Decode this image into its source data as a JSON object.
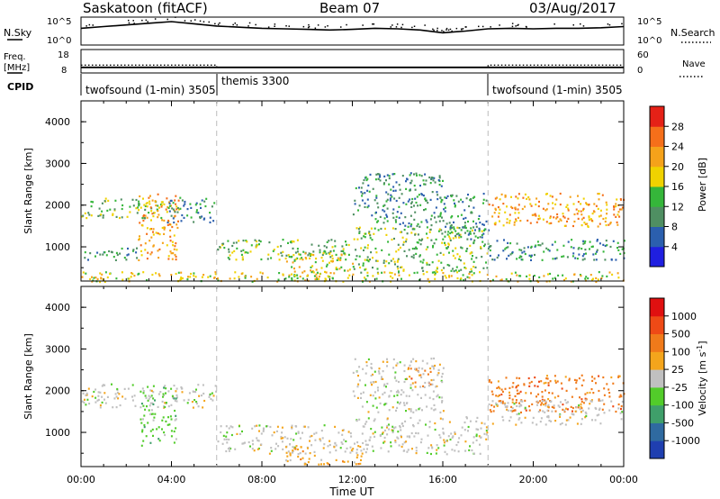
{
  "header": {
    "station": "Saskatoon (fitACF)",
    "beam": "Beam 07",
    "date": "03/Aug/2017"
  },
  "colors": {
    "power_scale": [
      "#1f1fe0",
      "#2b5fae",
      "#4f8f62",
      "#35b63a",
      "#f0d200",
      "#f5a21a",
      "#f56f1a",
      "#e52117"
    ],
    "velocity_scale": [
      "#1f3fb0",
      "#2f6aa0",
      "#3f9f6a",
      "#52cc2a",
      "#c0c0c0",
      "#f4a51c",
      "#f07a1a",
      "#ee4a16",
      "#e01010"
    ]
  },
  "chart_data": [
    {
      "type": "line",
      "name": "nsky-nsearch-panel",
      "left_label": "N.Sky",
      "right_label": "N.Search",
      "left_ticks": [
        "10^5",
        "10^0"
      ],
      "right_ticks": [
        "10^5",
        "10^0"
      ],
      "series": [
        {
          "name": "N.Sky",
          "style": "solid"
        },
        {
          "name": "N.Search",
          "style": "dotted"
        }
      ],
      "x": [
        0,
        1,
        2,
        3,
        4,
        5,
        6,
        7,
        8,
        9,
        10,
        11,
        12,
        13,
        14,
        15,
        16,
        17,
        18,
        19,
        20,
        21,
        22,
        23,
        24
      ],
      "values": [
        3.0,
        3.3,
        3.6,
        3.9,
        4.2,
        3.8,
        3.4,
        3.2,
        3.0,
        2.9,
        2.8,
        2.7,
        2.8,
        3.0,
        2.9,
        2.7,
        2.2,
        2.5,
        2.9,
        3.0,
        2.9,
        3.0,
        3.0,
        3.1,
        3.3
      ]
    },
    {
      "type": "line",
      "name": "freq-nave-panel",
      "left_label_line1": "Freq.",
      "left_label_line2": "[MHz]",
      "right_label": "Nave",
      "left_ticks": [
        "18",
        "8"
      ],
      "right_ticks": [
        "60",
        "0"
      ],
      "series": [
        {
          "name": "Freq.",
          "style": "solid",
          "x": [
            0,
            24
          ],
          "values": [
            10,
            10
          ]
        },
        {
          "name": "Nave",
          "style": "dotted",
          "x": [
            0,
            6,
            6,
            18,
            18,
            24
          ],
          "values": [
            20,
            20,
            14,
            14,
            20,
            20
          ]
        }
      ]
    },
    {
      "type": "table",
      "name": "cpid-bar",
      "label": "CPID",
      "segments": [
        {
          "start": 0,
          "text": "twofsound (1-min) 3505"
        },
        {
          "start": 6,
          "text": "themis 3300"
        },
        {
          "start": 18,
          "text": "twofsound (1-min) 3505"
        }
      ]
    },
    {
      "type": "heatmap",
      "name": "power-panel",
      "ylabel": "Slant Range [km]",
      "ylim": [
        180,
        4500
      ],
      "yticks": [
        "4000",
        "3000",
        "2000",
        "1000"
      ],
      "colorbar_label": "Power [dB]",
      "colorbar_ticks": [
        "28",
        "24",
        "20",
        "16",
        "12",
        "8",
        "4"
      ],
      "colorbar_range": [
        0,
        32
      ],
      "regions": [
        {
          "x0": 0.0,
          "x1": 3.6,
          "y0": 1700,
          "y1": 2200,
          "level": 3
        },
        {
          "x0": 2.5,
          "x1": 4.3,
          "y0": 700,
          "y1": 2300,
          "level": 5
        },
        {
          "x0": 3.8,
          "x1": 6.0,
          "y0": 1600,
          "y1": 2200,
          "level": 2
        },
        {
          "x0": 0.0,
          "x1": 2.5,
          "y0": 700,
          "y1": 1000,
          "level": 2
        },
        {
          "x0": 6.0,
          "x1": 12.0,
          "y0": 700,
          "y1": 1200,
          "level": 3
        },
        {
          "x0": 9.0,
          "x1": 12.0,
          "y0": 250,
          "y1": 900,
          "level": 4
        },
        {
          "x0": 12.0,
          "x1": 18.0,
          "y0": 400,
          "y1": 1500,
          "level": 3
        },
        {
          "x0": 12.0,
          "x1": 16.0,
          "y0": 1500,
          "y1": 2800,
          "level": 2
        },
        {
          "x0": 16.0,
          "x1": 18.0,
          "y0": 1200,
          "y1": 2300,
          "level": 2
        },
        {
          "x0": 18.0,
          "x1": 24.0,
          "y0": 1500,
          "y1": 2300,
          "level": 5
        },
        {
          "x0": 18.0,
          "x1": 24.0,
          "y0": 700,
          "y1": 1200,
          "level": 2
        },
        {
          "x0": 0.0,
          "x1": 24.0,
          "y0": 180,
          "y1": 420,
          "level": 4
        }
      ]
    },
    {
      "type": "heatmap",
      "name": "velocity-panel",
      "ylabel": "Slant Range [km]",
      "ylim": [
        180,
        4500
      ],
      "yticks": [
        "4000",
        "3000",
        "2000",
        "1000"
      ],
      "xlabel": "Time UT",
      "xticks": [
        "00:00",
        "04:00",
        "08:00",
        "12:00",
        "16:00",
        "20:00",
        "00:00"
      ],
      "xlim": [
        0,
        24
      ],
      "colorbar_label": "Velocity [m s^-1]",
      "colorbar_ticks": [
        "1000",
        "500",
        "100",
        "25",
        "-25",
        "-100",
        "-500",
        "-1000"
      ],
      "regions": [
        {
          "x0": 0.0,
          "x1": 6.0,
          "y0": 1600,
          "y1": 2200,
          "level": 4
        },
        {
          "x0": 2.6,
          "x1": 4.2,
          "y0": 700,
          "y1": 2100,
          "level": 3
        },
        {
          "x0": 6.0,
          "x1": 12.0,
          "y0": 500,
          "y1": 1200,
          "level": 4
        },
        {
          "x0": 9.0,
          "x1": 12.5,
          "y0": 250,
          "y1": 700,
          "level": 5
        },
        {
          "x0": 12.0,
          "x1": 18.0,
          "y0": 500,
          "y1": 1400,
          "level": 4
        },
        {
          "x0": 14.3,
          "x1": 15.5,
          "y0": 2100,
          "y1": 2600,
          "level": 6
        },
        {
          "x0": 18.0,
          "x1": 24.0,
          "y0": 1500,
          "y1": 2400,
          "level": 6
        },
        {
          "x0": 18.0,
          "x1": 24.0,
          "y0": 1200,
          "y1": 1800,
          "level": 4
        },
        {
          "x0": 12.0,
          "x1": 16.0,
          "y0": 1500,
          "y1": 2800,
          "level": 4
        }
      ]
    }
  ]
}
